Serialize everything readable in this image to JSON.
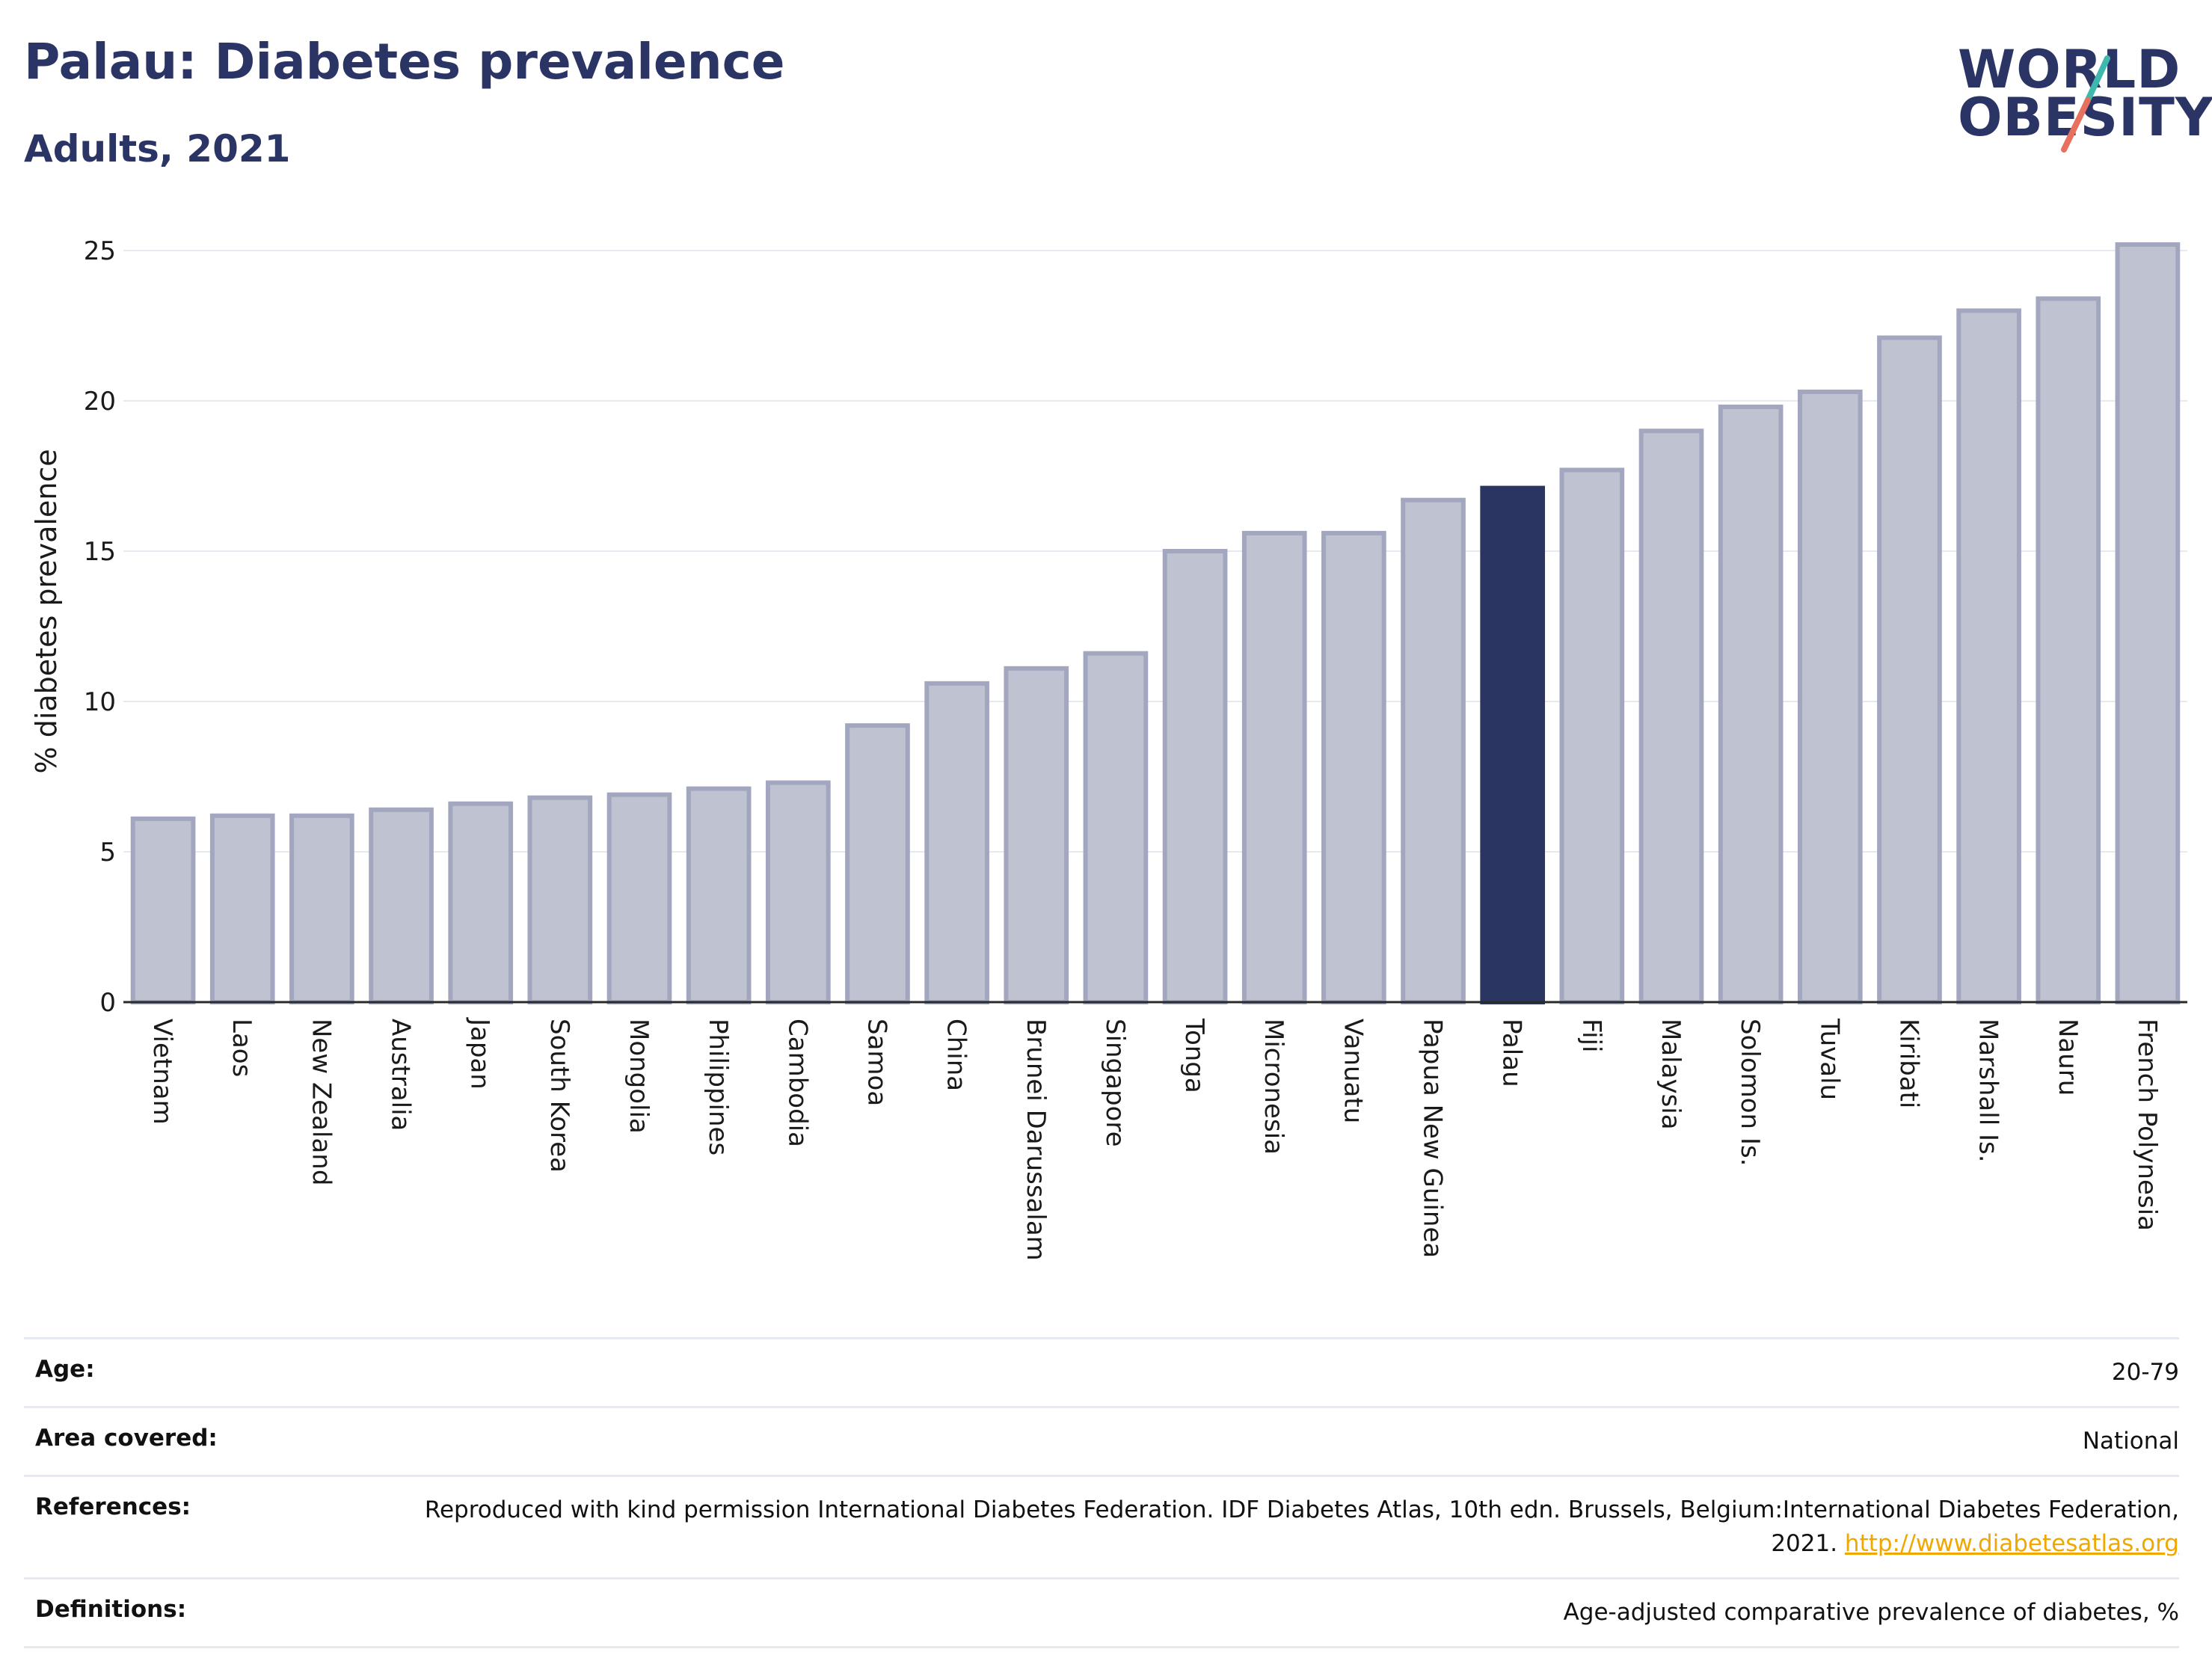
{
  "header": {
    "title": "Palau: Diabetes prevalence",
    "subtitle": "Adults, 2021"
  },
  "logo": {
    "line1": "WORLD",
    "line2": "OBESITY",
    "accent_teal": "#3fb8ad",
    "accent_red": "#e8705f"
  },
  "chart_data": {
    "type": "bar",
    "ylabel": "% diabetes prevalence",
    "ylim": [
      0,
      26
    ],
    "yticks": [
      0,
      5,
      10,
      15,
      20,
      25
    ],
    "grid": true,
    "highlight": "Palau",
    "highlight_color": "#2b3561",
    "bar_color": "#bfc2d0",
    "bar_edge_color": "#a2a7bf",
    "categories": [
      "Vietnam",
      "Laos",
      "New Zealand",
      "Australia",
      "Japan",
      "South Korea",
      "Mongolia",
      "Philippines",
      "Cambodia",
      "Samoa",
      "China",
      "Brunei Darussalam",
      "Singapore",
      "Tonga",
      "Micronesia",
      "Vanuatu",
      "Papua New Guinea",
      "Palau",
      "Fiji",
      "Malaysia",
      "Solomon Is.",
      "Tuvalu",
      "Kiribati",
      "Marshall Is.",
      "Nauru",
      "French Polynesia"
    ],
    "values": [
      6.1,
      6.2,
      6.2,
      6.4,
      6.6,
      6.8,
      6.9,
      7.1,
      7.3,
      9.2,
      10.6,
      11.1,
      11.6,
      15.0,
      15.6,
      15.6,
      16.7,
      17.1,
      17.7,
      19.0,
      19.8,
      20.3,
      22.1,
      23.0,
      23.4,
      25.2
    ]
  },
  "meta": {
    "rows": [
      {
        "label": "Age:",
        "value": "20-79"
      },
      {
        "label": "Area covered:",
        "value": "National"
      },
      {
        "label": "References:",
        "value": "Reproduced with kind permission International Diabetes Federation.  IDF Diabetes Atlas, 10th edn. Brussels, Belgium:International Diabetes Federation, 2021.",
        "link": "http://www.diabetesatlas.org"
      },
      {
        "label": "Definitions:",
        "value": "Age-adjusted comparative prevalence of diabetes, %"
      }
    ]
  }
}
